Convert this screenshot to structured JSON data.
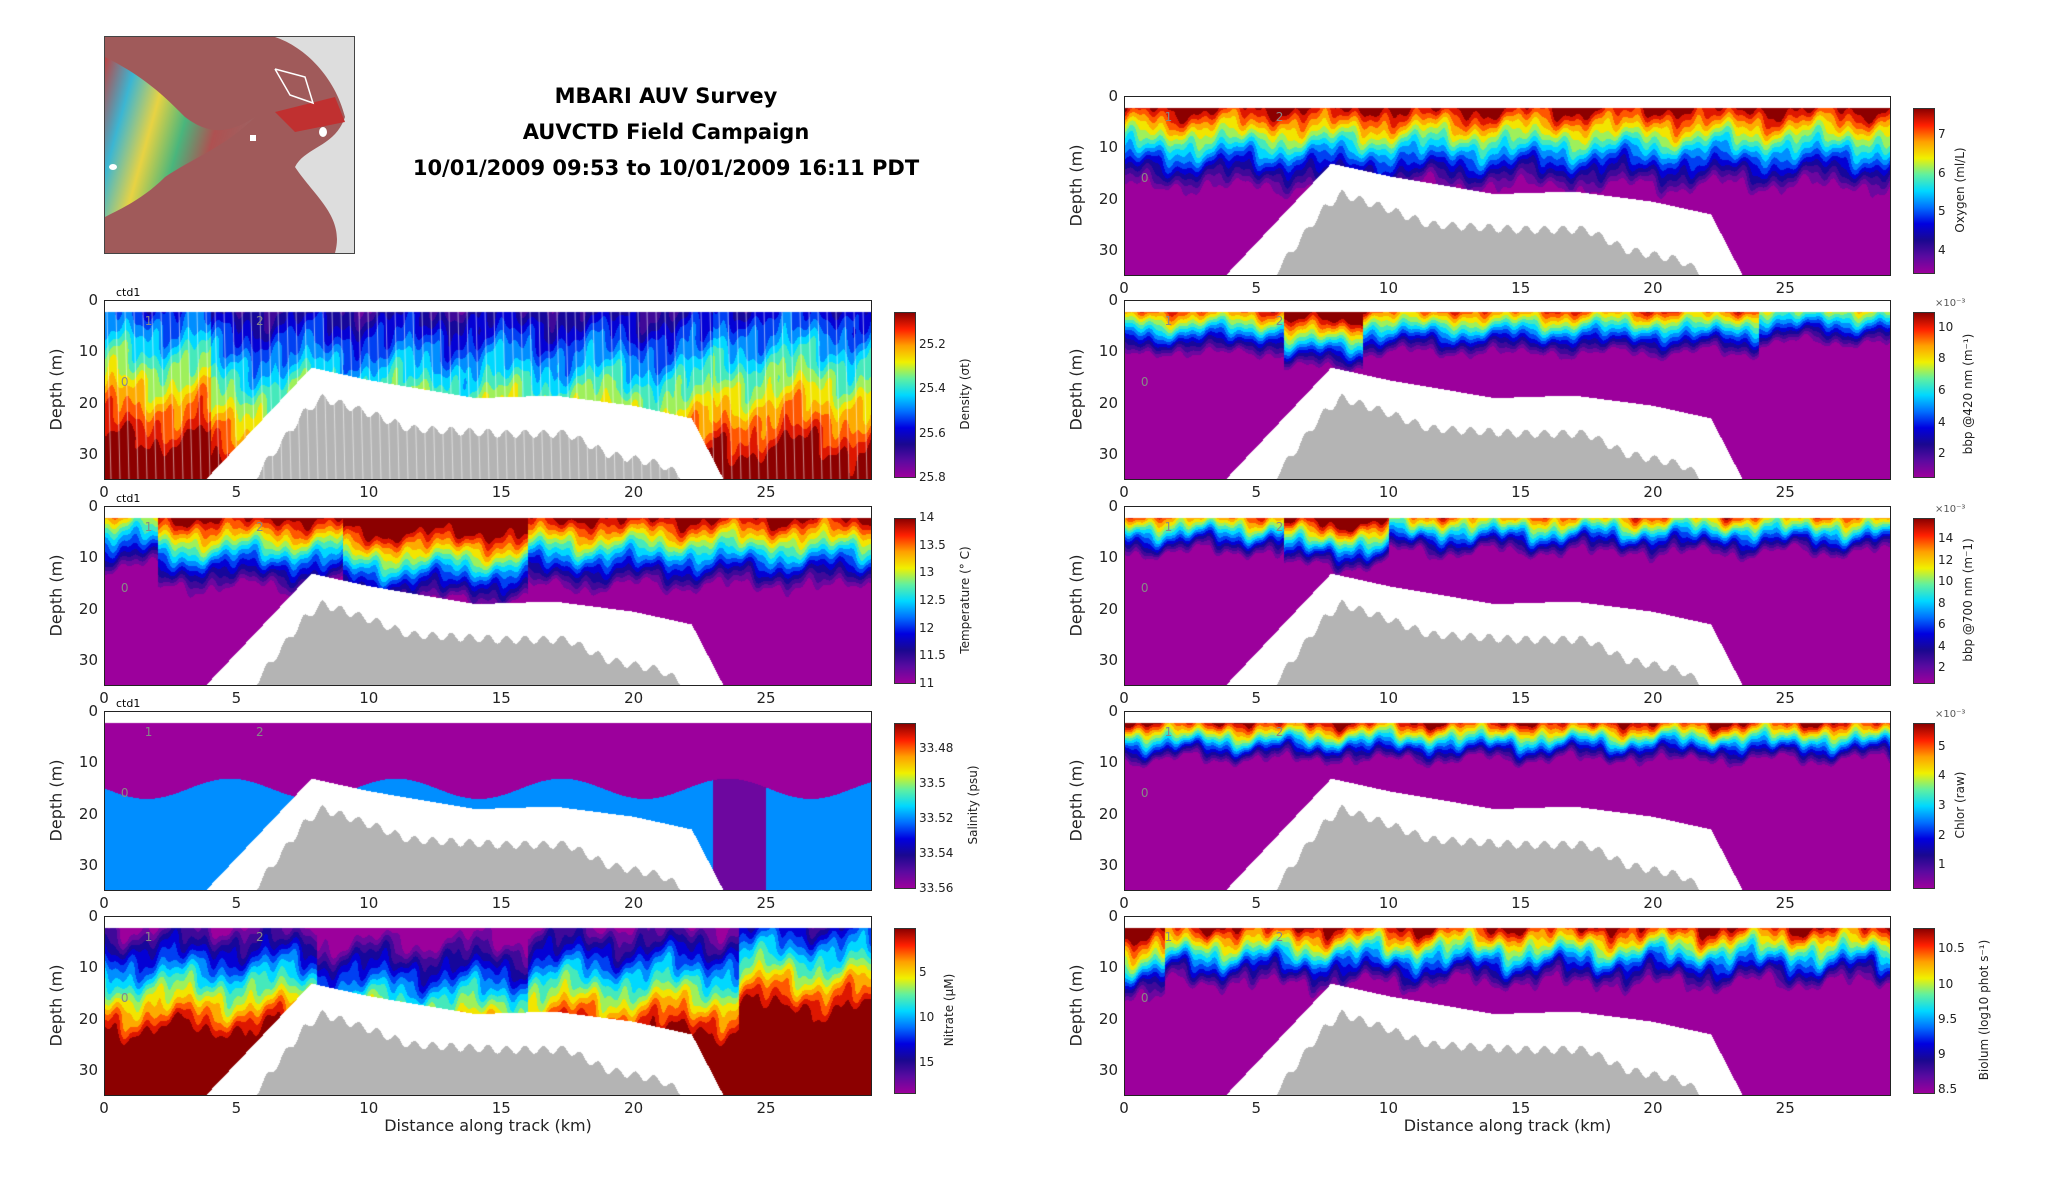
{
  "header": {
    "title_line1": "MBARI AUV Survey",
    "title_line2": "AUVCTD Field Campaign",
    "title_line3": "10/01/2009 09:53 to 10/01/2009 16:11 PDT"
  },
  "colormap": [
    "#9c009c",
    "#5a0aa0",
    "#1a0890",
    "#0000e0",
    "#0070ff",
    "#00d8ff",
    "#60f0a0",
    "#f0f000",
    "#ffa000",
    "#ff2000",
    "#8c0000"
  ],
  "chart_data": [
    {
      "id": "density",
      "type": "heatmap",
      "panel_tag": "ctd1",
      "ylabel": "Depth (m)",
      "xlabel": "",
      "xlim": [
        0,
        29
      ],
      "ylim": [
        35,
        0
      ],
      "yticks": [
        "0",
        "10",
        "20",
        "30"
      ],
      "xticks": [
        "0",
        "5",
        "10",
        "15",
        "20",
        "25"
      ],
      "colorbar": {
        "label": "Density (σt)",
        "ticks": [
          "25.2",
          "25.4",
          "25.6",
          "25.8"
        ],
        "tick_values": [
          25.2,
          25.4,
          25.6,
          25.8
        ],
        "range": [
          25.05,
          25.8
        ],
        "reversed": true,
        "exponent": ""
      },
      "markers": [
        "1",
        "2",
        "0"
      ]
    },
    {
      "id": "temperature",
      "type": "heatmap",
      "panel_tag": "ctd1",
      "ylabel": "Depth (m)",
      "xlabel": "",
      "xlim": [
        0,
        29
      ],
      "ylim": [
        35,
        0
      ],
      "yticks": [
        "0",
        "10",
        "20",
        "30"
      ],
      "xticks": [
        "0",
        "5",
        "10",
        "15",
        "20",
        "25"
      ],
      "colorbar": {
        "label": "Temperature (° C)",
        "ticks": [
          "11",
          "11.5",
          "12",
          "12.5",
          "13",
          "13.5",
          "14"
        ],
        "tick_values": [
          11,
          11.5,
          12,
          12.5,
          13,
          13.5,
          14
        ],
        "range": [
          11,
          14
        ],
        "reversed": false,
        "exponent": ""
      },
      "markers": [
        "1",
        "2",
        "0"
      ]
    },
    {
      "id": "salinity",
      "type": "heatmap",
      "panel_tag": "ctd1",
      "ylabel": "Depth (m)",
      "xlabel": "",
      "xlim": [
        0,
        29
      ],
      "ylim": [
        35,
        0
      ],
      "yticks": [
        "0",
        "10",
        "20",
        "30"
      ],
      "xticks": [
        "0",
        "5",
        "10",
        "15",
        "20",
        "25"
      ],
      "colorbar": {
        "label": "Salinity (psu)",
        "ticks": [
          "33.48",
          "33.5",
          "33.52",
          "33.54",
          "33.56"
        ],
        "tick_values": [
          33.48,
          33.5,
          33.52,
          33.54,
          33.56
        ],
        "range": [
          33.465,
          33.56
        ],
        "reversed": true,
        "exponent": ""
      },
      "markers": [
        "1",
        "2",
        "0"
      ]
    },
    {
      "id": "nitrate",
      "type": "heatmap",
      "panel_tag": "",
      "ylabel": "Depth (m)",
      "xlabel": "Distance along track (km)",
      "xlim": [
        0,
        29
      ],
      "ylim": [
        35,
        0
      ],
      "yticks": [
        "0",
        "10",
        "20",
        "30"
      ],
      "xticks": [
        "0",
        "5",
        "10",
        "15",
        "20",
        "25"
      ],
      "colorbar": {
        "label": "Nitrate (μM)",
        "ticks": [
          "5",
          "10",
          "15"
        ],
        "tick_values": [
          5,
          10,
          15
        ],
        "range": [
          0,
          18.5
        ],
        "reversed": true,
        "exponent": ""
      },
      "markers": [
        "1",
        "2",
        "0"
      ]
    },
    {
      "id": "oxygen",
      "type": "heatmap",
      "panel_tag": "",
      "ylabel": "Depth (m)",
      "xlabel": "",
      "xlim": [
        0,
        29
      ],
      "ylim": [
        35,
        0
      ],
      "yticks": [
        "0",
        "10",
        "20",
        "30"
      ],
      "xticks": [
        "0",
        "5",
        "10",
        "15",
        "20",
        "25"
      ],
      "colorbar": {
        "label": "Oxygen (ml/L)",
        "ticks": [
          "4",
          "5",
          "6",
          "7"
        ],
        "tick_values": [
          4,
          5,
          6,
          7
        ],
        "range": [
          3.4,
          7.7
        ],
        "reversed": false,
        "exponent": ""
      },
      "markers": [
        "1",
        "2",
        "0"
      ]
    },
    {
      "id": "bbp420",
      "type": "heatmap",
      "panel_tag": "",
      "ylabel": "Depth (m)",
      "xlabel": "",
      "xlim": [
        0,
        29
      ],
      "ylim": [
        35,
        0
      ],
      "yticks": [
        "0",
        "10",
        "20",
        "30"
      ],
      "xticks": [
        "0",
        "5",
        "10",
        "15",
        "20",
        "25"
      ],
      "colorbar": {
        "label": "bbp @420 nm (m⁻¹)",
        "ticks": [
          "2",
          "4",
          "6",
          "8",
          "10"
        ],
        "tick_values": [
          2,
          4,
          6,
          8,
          10
        ],
        "range": [
          0.5,
          11
        ],
        "reversed": false,
        "exponent": "×10⁻³"
      },
      "markers": [
        "1",
        "2",
        "0"
      ]
    },
    {
      "id": "bbp700",
      "type": "heatmap",
      "panel_tag": "",
      "ylabel": "Depth (m)",
      "xlabel": "",
      "xlim": [
        0,
        29
      ],
      "ylim": [
        35,
        0
      ],
      "yticks": [
        "0",
        "10",
        "20",
        "30"
      ],
      "xticks": [
        "0",
        "5",
        "10",
        "15",
        "20",
        "25"
      ],
      "colorbar": {
        "label": "bbp @700 nm (m⁻1)",
        "ticks": [
          "2",
          "4",
          "6",
          "8",
          "10",
          "12",
          "14"
        ],
        "tick_values": [
          2,
          4,
          6,
          8,
          10,
          12,
          14
        ],
        "range": [
          0.5,
          16
        ],
        "reversed": false,
        "exponent": "×10⁻³"
      },
      "markers": [
        "1",
        "2",
        "0"
      ]
    },
    {
      "id": "chlor",
      "type": "heatmap",
      "panel_tag": "",
      "ylabel": "Depth (m)",
      "xlabel": "",
      "xlim": [
        0,
        29
      ],
      "ylim": [
        35,
        0
      ],
      "yticks": [
        "0",
        "10",
        "20",
        "30"
      ],
      "xticks": [
        "0",
        "5",
        "10",
        "15",
        "20",
        "25"
      ],
      "colorbar": {
        "label": "Chlor (raw)",
        "ticks": [
          "1",
          "2",
          "3",
          "4",
          "5"
        ],
        "tick_values": [
          1,
          2,
          3,
          4,
          5
        ],
        "range": [
          0.2,
          5.8
        ],
        "reversed": false,
        "exponent": "×10⁻³"
      },
      "markers": [
        "1",
        "2",
        "0"
      ]
    },
    {
      "id": "biolum",
      "type": "heatmap",
      "panel_tag": "",
      "ylabel": "Depth (m)",
      "xlabel": "Distance along track (km)",
      "xlim": [
        0,
        29
      ],
      "ylim": [
        35,
        0
      ],
      "yticks": [
        "0",
        "10",
        "20",
        "30"
      ],
      "xticks": [
        "0",
        "5",
        "10",
        "15",
        "20",
        "25"
      ],
      "colorbar": {
        "label": "Biolum (log10 phot s⁻¹)",
        "ticks": [
          "8.5",
          "9",
          "9.5",
          "10",
          "10.5"
        ],
        "tick_values": [
          8.5,
          9,
          9.5,
          10,
          10.5
        ],
        "range": [
          8.45,
          10.8
        ],
        "reversed": false,
        "exponent": ""
      },
      "markers": [
        "1",
        "2",
        "0"
      ]
    }
  ]
}
